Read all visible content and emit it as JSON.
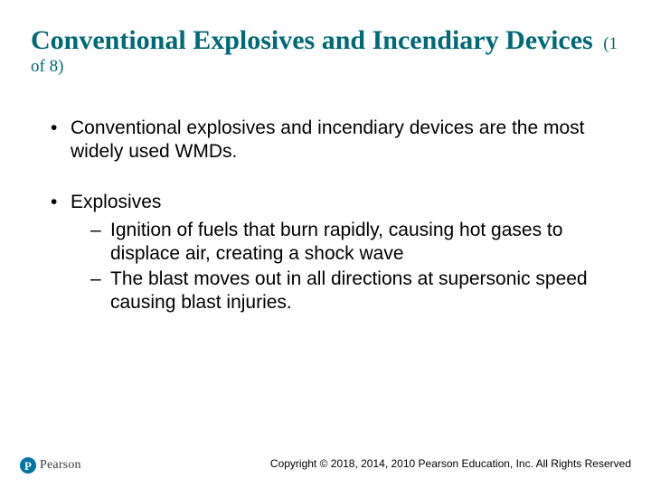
{
  "title": {
    "main": "Conventional Explosives and Incendiary Devices ",
    "sub": "(1 of 8)"
  },
  "bullets": [
    {
      "text": "Conventional explosives and incendiary devices are the most widely used WMDs.",
      "subs": []
    },
    {
      "text": "Explosives",
      "subs": [
        "Ignition of fuels that burn rapidly, causing hot gases to displace air, creating a shock wave",
        "The blast moves out in all directions at supersonic speed causing blast injuries."
      ]
    }
  ],
  "footer": {
    "copyright": "Copyright © 2018, 2014, 2010 Pearson Education, Inc. All Rights Reserved",
    "logo_text": "Pearson",
    "logo_letter": "P"
  },
  "colors": {
    "title_color": "#006978",
    "body_text": "#000000",
    "background": "#ffffff",
    "logo_bg": "#0073a5"
  }
}
